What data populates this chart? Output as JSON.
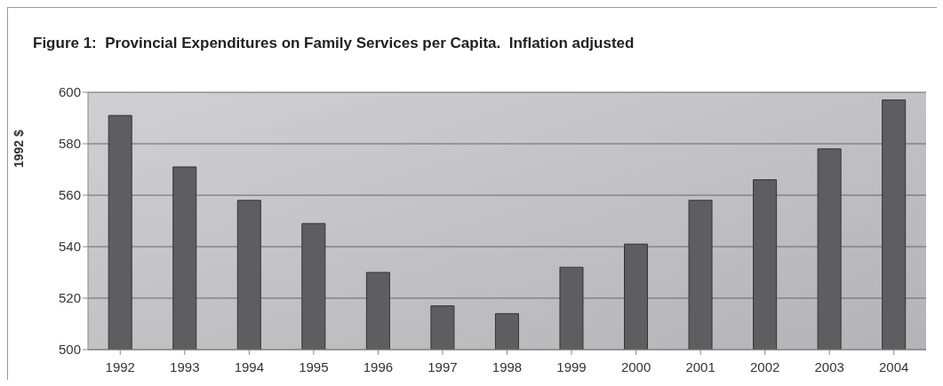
{
  "chart_data": {
    "type": "bar",
    "title": "Figure 1:  Provincial Expenditures on Family Services per Capita.  Inflation adjusted",
    "ylabel": "1992 $",
    "categories": [
      "1992",
      "1993",
      "1994",
      "1995",
      "1996",
      "1997",
      "1998",
      "1999",
      "2000",
      "2001",
      "2002",
      "2003",
      "2004"
    ],
    "values": [
      591,
      571,
      558,
      549,
      530,
      517,
      514,
      532,
      541,
      558,
      566,
      578,
      597
    ],
    "color": "#5e5e61",
    "ylim": [
      500,
      600
    ],
    "yticks": [
      500,
      520,
      540,
      560,
      580,
      600
    ],
    "grid": "y"
  }
}
